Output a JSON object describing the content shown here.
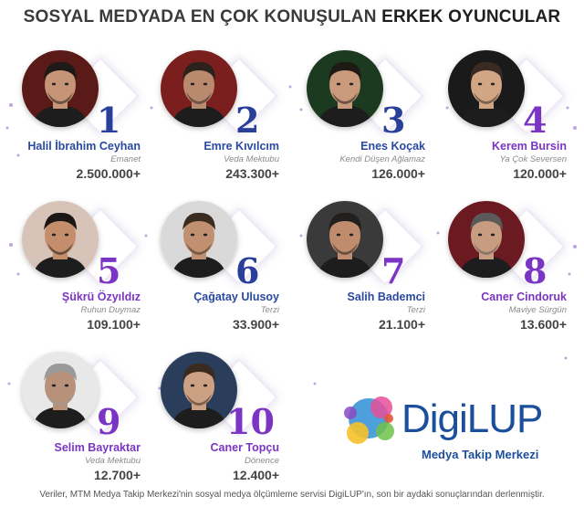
{
  "header": {
    "title_regular": "SOSYAL MEDYADA EN ÇOK KONUŞULAN",
    "title_bold": "ERKEK OYUNCULAR"
  },
  "actors": [
    {
      "rank": "1",
      "name": "Halil İbrahim Ceyhan",
      "show": "Emanet",
      "count": "2.500.000+"
    },
    {
      "rank": "2",
      "name": "Emre Kıvılcım",
      "show": "Veda Mektubu",
      "count": "243.300+"
    },
    {
      "rank": "3",
      "name": "Enes Koçak",
      "show": "Kendi Düşen Ağlamaz",
      "count": "126.000+"
    },
    {
      "rank": "4",
      "name": "Kerem Bursin",
      "show": "Ya Çok Seversen",
      "count": "120.000+"
    },
    {
      "rank": "5",
      "name": "Şükrü Özyıldız",
      "show": "Ruhun Duymaz",
      "count": "109.100+"
    },
    {
      "rank": "6",
      "name": "Çağatay Ulusoy",
      "show": "Terzi",
      "count": "33.900+"
    },
    {
      "rank": "7",
      "name": "Salih Bademci",
      "show": "Terzi",
      "count": "21.100+"
    },
    {
      "rank": "8",
      "name": "Caner Cindoruk",
      "show": "Maviye Sürgün",
      "count": "13.600+"
    },
    {
      "rank": "9",
      "name": "Selim Bayraktar",
      "show": "Veda Mektubu",
      "count": "12.700+"
    },
    {
      "rank": "10",
      "name": "Caner Topçu",
      "show": "Dönence",
      "count": "12.400+"
    }
  ],
  "logo": {
    "text": "DigiLUP",
    "subtitle": "Medya Takip Merkezi"
  },
  "footer": {
    "text": "Veriler, MTM Medya Takip Merkezi'nin sosyal medya ölçümleme servisi DigiLUP'ın, son bir aydaki sonuçlarından derlenmiştir."
  },
  "colors": {
    "rank_blue": "#2a3f9a",
    "rank_purple": "#7b35c4",
    "name_blue": "#2a4aa0",
    "name_purple": "#7b35c4",
    "logo_blue": "#1b4f9c"
  }
}
